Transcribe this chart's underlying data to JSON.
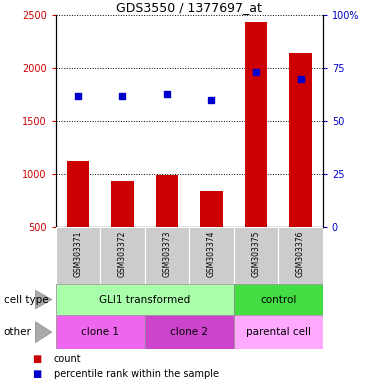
{
  "title": "GDS3550 / 1377697_at",
  "samples": [
    "GSM303371",
    "GSM303372",
    "GSM303373",
    "GSM303374",
    "GSM303375",
    "GSM303376"
  ],
  "counts": [
    1120,
    930,
    990,
    840,
    2440,
    2140
  ],
  "percentile_ranks": [
    62,
    62,
    63,
    60,
    73,
    70
  ],
  "ylim_left": [
    500,
    2500
  ],
  "ylim_right": [
    0,
    100
  ],
  "yticks_left": [
    500,
    1000,
    1500,
    2000,
    2500
  ],
  "yticks_right": [
    0,
    25,
    50,
    75,
    100
  ],
  "bar_color": "#cc0000",
  "dot_color": "#0000cc",
  "cell_type_row": {
    "label": "cell type",
    "groups": [
      {
        "text": "GLI1 transformed",
        "span": [
          0,
          4
        ],
        "color": "#aaffaa"
      },
      {
        "text": "control",
        "span": [
          4,
          6
        ],
        "color": "#44dd44"
      }
    ]
  },
  "other_row": {
    "label": "other",
    "groups": [
      {
        "text": "clone 1",
        "span": [
          0,
          2
        ],
        "color": "#ee66ee"
      },
      {
        "text": "clone 2",
        "span": [
          2,
          4
        ],
        "color": "#cc44cc"
      },
      {
        "text": "parental cell",
        "span": [
          4,
          6
        ],
        "color": "#ffaaff"
      }
    ]
  },
  "legend": [
    {
      "color": "#cc0000",
      "label": "count"
    },
    {
      "color": "#0000cc",
      "label": "percentile rank within the sample"
    }
  ],
  "tick_label_color_left": "#cc0000",
  "tick_label_color_right": "#0000cc",
  "bar_width": 0.5,
  "bg_color": "#ffffff",
  "xticklabel_bg": "#cccccc"
}
